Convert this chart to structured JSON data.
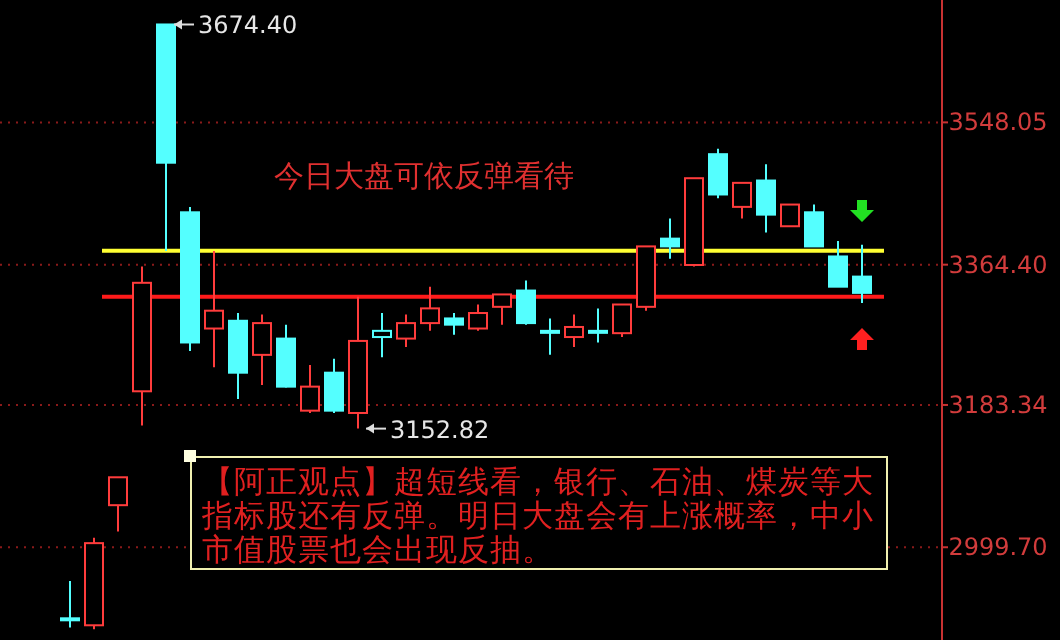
{
  "chart_data": {
    "type": "candlestick",
    "categories": [
      null,
      null,
      null,
      null,
      null,
      null,
      null,
      null,
      null,
      null,
      null,
      null,
      null,
      null,
      null,
      null,
      null,
      null,
      null,
      null,
      null,
      null,
      null,
      null,
      null,
      null,
      null,
      null,
      null,
      null,
      null,
      null,
      null,
      null
    ],
    "ohlc": [
      [
        2908,
        2956,
        2896,
        2906
      ],
      [
        2899,
        3012,
        2894,
        3005
      ],
      [
        3054,
        3090,
        3020,
        3090
      ],
      [
        3201,
        3362,
        3157,
        3341
      ],
      [
        3674.4,
        3674.4,
        3382,
        3496
      ],
      [
        3432,
        3439,
        3253,
        3264
      ],
      [
        3282,
        3382,
        3232,
        3305
      ],
      [
        3292,
        3302,
        3191,
        3225
      ],
      [
        3248,
        3300,
        3209,
        3289
      ],
      [
        3269,
        3287,
        3206,
        3207
      ],
      [
        3176,
        3235,
        3173,
        3207
      ],
      [
        3225,
        3243,
        3173,
        3176
      ],
      [
        3173,
        3323,
        3152.82,
        3266
      ],
      [
        3271,
        3302,
        3245,
        3279
      ],
      [
        3269,
        3300,
        3258,
        3289
      ],
      [
        3289,
        3336,
        3279,
        3308
      ],
      [
        3295,
        3302,
        3274,
        3287
      ],
      [
        3282,
        3313,
        3279,
        3302
      ],
      [
        3310,
        3326,
        3287,
        3326
      ],
      [
        3331,
        3344,
        3287,
        3289
      ],
      [
        3279,
        3295,
        3248,
        3277
      ],
      [
        3271,
        3300,
        3258,
        3284
      ],
      [
        3279,
        3308,
        3264,
        3277
      ],
      [
        3276,
        3313,
        3271,
        3313
      ],
      [
        3310,
        3388,
        3305,
        3388
      ],
      [
        3398,
        3424,
        3372,
        3388
      ],
      [
        3364,
        3476,
        3362,
        3476
      ],
      [
        3507,
        3514,
        3450,
        3455
      ],
      [
        3439,
        3470,
        3424,
        3470
      ],
      [
        3473,
        3494,
        3406,
        3429
      ],
      [
        3414,
        3442,
        3414,
        3442
      ],
      [
        3432,
        3442,
        3388,
        3388
      ],
      [
        3375,
        3395,
        3336,
        3336
      ],
      [
        3349,
        3390,
        3315,
        3328
      ]
    ],
    "colors": [
      "#54ffff",
      "#ff3c3c",
      "#ff3c3c",
      "#ff3c3c",
      "#54ffff",
      "#54ffff",
      "#ff3c3c",
      "#54ffff",
      "#ff3c3c",
      "#54ffff",
      "#ff3c3c",
      "#54ffff",
      "#ff3c3c",
      "#54ffff",
      "#ff3c3c",
      "#ff3c3c",
      "#54ffff",
      "#ff3c3c",
      "#ff3c3c",
      "#54ffff",
      "#54ffff",
      "#ff3c3c",
      "#54ffff",
      "#ff3c3c",
      "#ff3c3c",
      "#54ffff",
      "#ff3c3c",
      "#54ffff",
      "#ff3c3c",
      "#54ffff",
      "#ff3c3c",
      "#54ffff",
      "#54ffff",
      "#54ffff"
    ],
    "ylim": [
      2880,
      3706
    ],
    "yticks": [
      3548.05,
      {
        "value": 3364.4,
        "label": "3364.40"
      },
      3183.34,
      {
        "value": 2999.7,
        "label": "2999.70"
      }
    ],
    "grid": "y",
    "ref_lines": [
      {
        "axis": "y",
        "value": 3382.5,
        "color": "#ffff33"
      },
      {
        "axis": "y",
        "value": 3323,
        "color": "#ff1a1a"
      }
    ],
    "annotations": [
      "3674.40",
      "3152.82",
      "今日大盘可依反弹看待",
      "【阿正观点】超短线看，银行、石油、煤炭等大指标股还有反弹。明日大盘会有上涨概率，中小市值股票也会出现反抽。"
    ]
  }
}
